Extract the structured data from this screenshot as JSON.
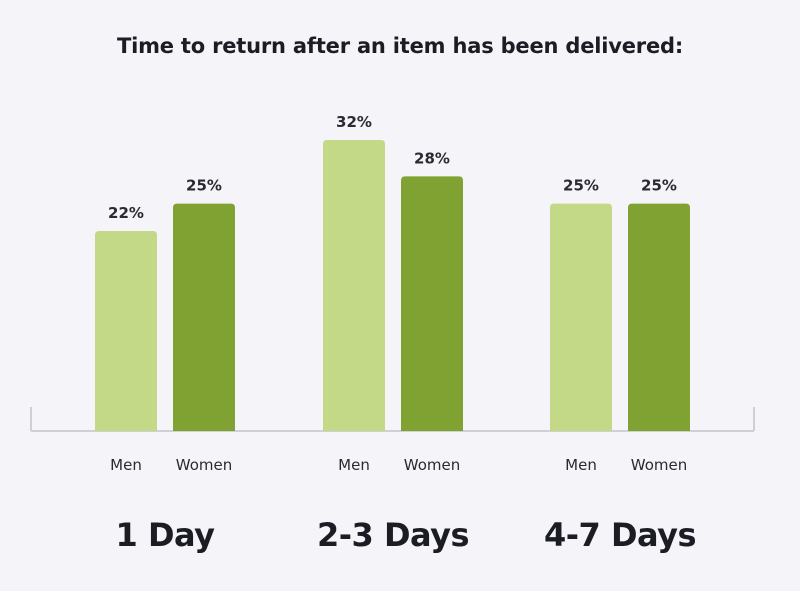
{
  "chart_data": {
    "type": "bar",
    "title": "Time to return after an item has been delivered:",
    "categories": [
      "1 Day",
      "2-3 Days",
      "4-7 Days"
    ],
    "series": [
      {
        "name": "Men",
        "values": [
          22,
          32,
          25
        ],
        "color": "#c4d987"
      },
      {
        "name": "Women",
        "values": [
          25,
          28,
          25
        ],
        "color": "#7fa233"
      }
    ],
    "value_labels": [
      [
        "22%",
        "32%",
        "25%"
      ],
      [
        "25%",
        "28%",
        "25%"
      ]
    ],
    "unit": "%",
    "ylim": [
      0,
      32
    ],
    "grid": false,
    "legend": "none",
    "axis_color": "#cfcfd6"
  }
}
